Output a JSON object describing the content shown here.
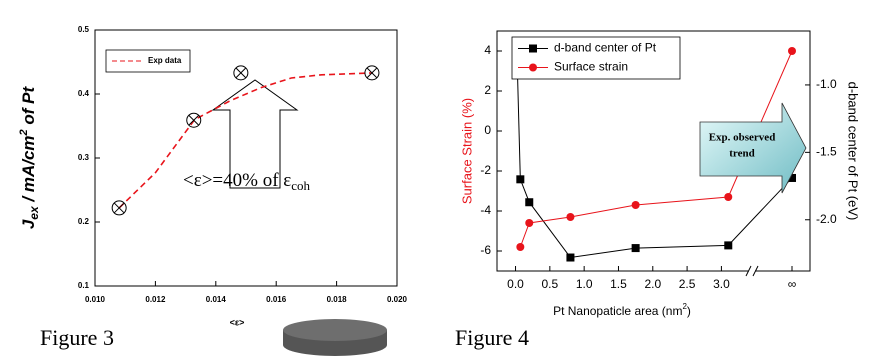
{
  "chart_data": [
    {
      "type": "line",
      "caption": "Figure 3",
      "ylabel": [
        "J",
        "ex",
        " / mA/cm",
        "2",
        " of Pt"
      ],
      "xlabel": "<ε>",
      "annotation": [
        "<ε>=40% of ε",
        "coh"
      ],
      "xlim": [
        0.01,
        0.02
      ],
      "xticks": [
        {
          "value": 0.01,
          "label": "0.010"
        },
        {
          "value": 0.012,
          "label": "0.012"
        },
        {
          "value": 0.014,
          "label": "0.014"
        },
        {
          "value": 0.016,
          "label": "0.016"
        },
        {
          "value": 0.018,
          "label": "0.018"
        },
        {
          "value": 0.02,
          "label": "0.020"
        }
      ],
      "ylim": [
        0.1,
        0.5
      ],
      "yticks": [
        0.1,
        0.2,
        0.3,
        0.4,
        0.5
      ],
      "legend": "upper left",
      "series": [
        {
          "name": "Exp data",
          "color": "#e8141b",
          "dash": true,
          "marker": "none",
          "x": [
            0.0108,
            0.012,
            0.0133,
            0.0145,
            0.0155,
            0.0165,
            0.0175,
            0.0192
          ],
          "values": [
            0.222,
            0.277,
            0.36,
            0.39,
            0.41,
            0.425,
            0.43,
            0.433
          ]
        },
        {
          "color": "#000000",
          "marker": "circle-x",
          "line": false,
          "x": [
            0.0108,
            0.01327,
            0.01483,
            0.01917
          ],
          "values": [
            0.222,
            0.359,
            0.433,
            0.433
          ]
        }
      ]
    },
    {
      "type": "line",
      "caption": "Figure 4",
      "xlabel": [
        "Pt Nanopaticle area (nm",
        "2",
        ")"
      ],
      "ylabel": "Surface Strain (%)",
      "y2label": "d-band center of Pt (eV)",
      "annotation": [
        "Exp. observed",
        "trend"
      ],
      "xlim": [
        -0.27,
        3.3
      ],
      "xticks": [
        {
          "value": 0,
          "label": "0.0"
        },
        {
          "value": 0.5,
          "label": "0.5"
        },
        {
          "value": 1,
          "label": "1.0"
        },
        {
          "value": 1.5,
          "label": "1.5"
        },
        {
          "value": 2,
          "label": "2.0"
        },
        {
          "value": 2.5,
          "label": "2.5"
        },
        {
          "value": 3,
          "label": "3.0"
        }
      ],
      "xbreak": true,
      "ylim": [
        -7,
        5
      ],
      "yticks": [
        -6,
        -4,
        -2,
        0,
        2,
        4
      ],
      "y2lim": [
        -2.38,
        -0.6
      ],
      "y2ticks": [
        {
          "value": -2,
          "label": "-2.0"
        },
        {
          "value": -1.5,
          "label": "-1.5"
        },
        {
          "value": -1,
          "label": "-1.0"
        }
      ],
      "legend": "upper left",
      "series": [
        {
          "name": "d-band center of Pt",
          "color": "#000000",
          "marker": "square",
          "axis": "y2",
          "x": [
            0.02,
            0.07,
            0.2,
            0.8,
            1.75,
            3.1,
            "∞"
          ],
          "values": [
            -0.75,
            -1.7,
            -1.87,
            -2.28,
            -2.21,
            -2.19,
            -1.69
          ]
        },
        {
          "name": "Surface strain",
          "color": "#e8141b",
          "marker": "circle",
          "x": [
            0.07,
            0.2,
            0.8,
            1.75,
            3.1,
            "∞"
          ],
          "values": [
            -5.8,
            -4.6,
            -4.3,
            -3.7,
            -3.3,
            4.0
          ]
        }
      ]
    }
  ]
}
